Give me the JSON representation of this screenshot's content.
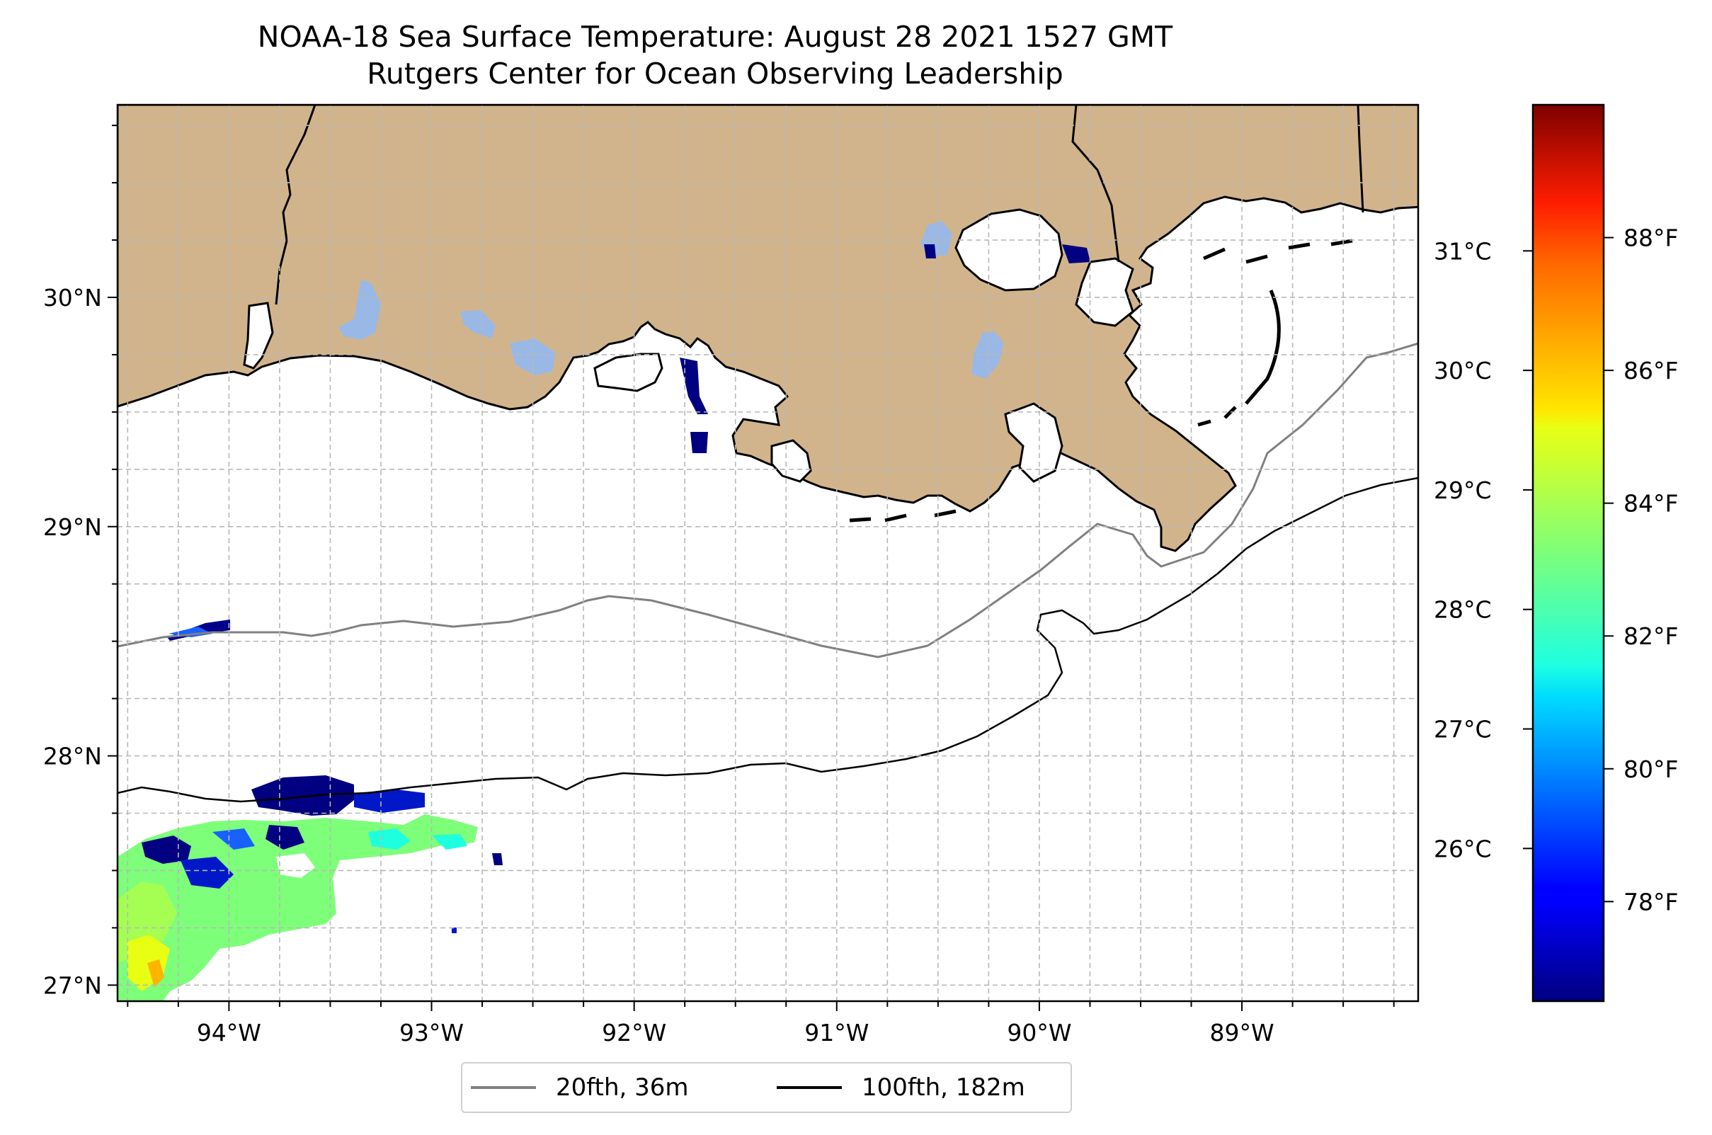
{
  "title": {
    "line1": "NOAA-18 Sea Surface Temperature: August 28 2021 1527 GMT",
    "line2": "Rutgers Center for Ocean Observing Leadership"
  },
  "map": {
    "lon_range": [
      -94.55,
      -88.13
    ],
    "lat_range": [
      26.93,
      30.84
    ],
    "lon_labels": [
      "94°W",
      "93°W",
      "92°W",
      "91°W",
      "90°W",
      "89°W"
    ],
    "lon_values": [
      -94,
      -93,
      -92,
      -91,
      -90,
      -89
    ],
    "lat_labels": [
      "27°N",
      "28°N",
      "29°N",
      "30°N"
    ],
    "lat_values": [
      27,
      28,
      29,
      30
    ],
    "grid": true,
    "land_color": "#d2b48c",
    "inland_water_color": "#9ab8e6",
    "colormap": "jet"
  },
  "legend": {
    "location": "below",
    "items": [
      {
        "label": "20fth, 36m",
        "color": "#808080"
      },
      {
        "label": "100fth, 182m",
        "color": "#000000"
      }
    ]
  },
  "colorbar": {
    "celsius_labels": [
      "26°C",
      "27°C",
      "28°C",
      "29°C",
      "30°C",
      "31°C"
    ],
    "celsius_values": [
      26,
      27,
      28,
      29,
      30,
      31
    ],
    "fahrenheit_labels": [
      "78°F",
      "80°F",
      "82°F",
      "84°F",
      "86°F",
      "88°F"
    ],
    "fahrenheit_values": [
      78,
      80,
      82,
      84,
      86,
      88
    ],
    "range_f": [
      76.5,
      90
    ]
  }
}
